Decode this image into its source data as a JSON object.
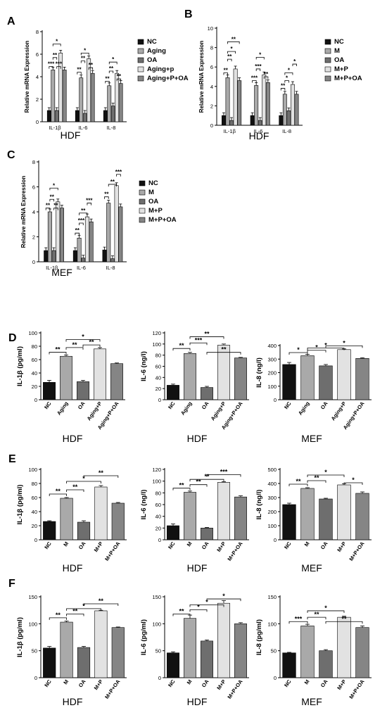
{
  "colors": {
    "NC": "#111111",
    "Aging": "#a9a9a9",
    "OA": "#6e6e6e",
    "Agingp": "#e2e2e2",
    "AgingpOA": "#858585"
  },
  "chart_data": [
    {
      "type": "bar",
      "panel": "A",
      "title": "HDF",
      "ylabel": "Relative mRNA Expression",
      "ylim": [
        0,
        8
      ],
      "yticks": [
        0,
        2,
        4,
        6,
        8
      ],
      "categories": [
        "IL-1β",
        "IL-6",
        "IL-8"
      ],
      "legend": [
        "NC",
        "Aging",
        "OA",
        "Aging+p",
        "Aging+P+OA"
      ],
      "series": [
        {
          "name": "NC",
          "values": [
            1,
            1,
            1
          ]
        },
        {
          "name": "Aging",
          "values": [
            4.6,
            3.9,
            3.2
          ]
        },
        {
          "name": "OA",
          "values": [
            1,
            0.75,
            1.4
          ]
        },
        {
          "name": "Aging+p",
          "values": [
            6.1,
            5.6,
            4.3
          ]
        },
        {
          "name": "Aging+P+OA",
          "values": [
            4.6,
            4.3,
            3.4
          ]
        }
      ],
      "annotations": [
        {
          "group": 0,
          "from": 0,
          "to": 1,
          "label": "***",
          "y": 4.9
        },
        {
          "group": 0,
          "from": 1,
          "to": 2,
          "label": "**",
          "y": 5.7
        },
        {
          "group": 0,
          "from": 1,
          "to": 3,
          "label": "*",
          "y": 6.9
        },
        {
          "group": 0,
          "from": 2,
          "to": 3,
          "label": "***",
          "y": 4.9
        },
        {
          "group": 1,
          "from": 0,
          "to": 1,
          "label": "**",
          "y": 4.4
        },
        {
          "group": 1,
          "from": 1,
          "to": 3,
          "label": "*",
          "y": 6.1
        },
        {
          "group": 1,
          "from": 1,
          "to": 2,
          "label": "**",
          "y": 5.4
        },
        {
          "group": 1,
          "from": 3,
          "to": 4,
          "label": "**",
          "y": 4.8
        },
        {
          "group": 2,
          "from": 0,
          "to": 1,
          "label": "**",
          "y": 3.6
        },
        {
          "group": 2,
          "from": 1,
          "to": 2,
          "label": "**",
          "y": 4.5
        },
        {
          "group": 2,
          "from": 1,
          "to": 3,
          "label": "*",
          "y": 5.3
        },
        {
          "group": 2,
          "from": 3,
          "to": 4,
          "label": "**",
          "y": 3.8
        }
      ]
    },
    {
      "type": "bar",
      "panel": "B",
      "title": "HDF",
      "ylabel": "Relative mRNA Expression",
      "ylim": [
        0,
        10
      ],
      "yticks": [
        0,
        2,
        4,
        6,
        8,
        10
      ],
      "categories": [
        "IL-1β",
        "IL-6",
        "IL-8"
      ],
      "legend": [
        "NC",
        "M",
        "OA",
        "M+P",
        "M+P+OA"
      ],
      "series": [
        {
          "name": "NC",
          "values": [
            1,
            1,
            1
          ]
        },
        {
          "name": "M",
          "values": [
            4.9,
            4.1,
            3.2
          ]
        },
        {
          "name": "OA",
          "values": [
            0.5,
            0.5,
            1.5
          ]
        },
        {
          "name": "M+P",
          "values": [
            5.8,
            5.2,
            4.2
          ]
        },
        {
          "name": "M+P+OA",
          "values": [
            4.6,
            4.4,
            3.2
          ]
        }
      ],
      "annotations": [
        {
          "group": 0,
          "from": 0,
          "to": 1,
          "label": "**",
          "y": 5.4
        },
        {
          "group": 0,
          "from": 1,
          "to": 2,
          "label": "**",
          "y": 6.8
        },
        {
          "group": 0,
          "from": 1,
          "to": 3,
          "label": "*",
          "y": 7.6
        },
        {
          "group": 0,
          "from": 1,
          "to": 4,
          "label": "**",
          "y": 8.6
        },
        {
          "group": 1,
          "from": 0,
          "to": 1,
          "label": "***",
          "y": 4.6
        },
        {
          "group": 1,
          "from": 1,
          "to": 2,
          "label": "***",
          "y": 5.8
        },
        {
          "group": 1,
          "from": 1,
          "to": 3,
          "label": "*",
          "y": 7.0
        },
        {
          "group": 1,
          "from": 3,
          "to": 4,
          "label": "**",
          "y": 5.0
        },
        {
          "group": 2,
          "from": 0,
          "to": 1,
          "label": "**",
          "y": 3.8
        },
        {
          "group": 2,
          "from": 1,
          "to": 2,
          "label": "*",
          "y": 4.6
        },
        {
          "group": 2,
          "from": 1,
          "to": 3,
          "label": "*",
          "y": 5.4
        },
        {
          "group": 2,
          "from": 3,
          "to": 4,
          "label": "*",
          "y": 6.3
        }
      ]
    },
    {
      "type": "bar",
      "panel": "C",
      "title": "MEF",
      "ylabel": "Relative mRNA Expression",
      "ylim": [
        0,
        8
      ],
      "yticks": [
        0,
        2,
        4,
        6,
        8
      ],
      "categories": [
        "IL-1β",
        "IL-6",
        "IL-8"
      ],
      "legend": [
        "NC",
        "M",
        "OA",
        "M+P",
        "M+P+OA"
      ],
      "series": [
        {
          "name": "NC",
          "values": [
            0.9,
            0.9,
            0.95
          ]
        },
        {
          "name": "M",
          "values": [
            4.0,
            1.9,
            4.7
          ]
        },
        {
          "name": "OA",
          "values": [
            0.9,
            0.3,
            0.25
          ]
        },
        {
          "name": "M+P",
          "values": [
            4.8,
            3.6,
            6.1
          ]
        },
        {
          "name": "M+P+OA",
          "values": [
            4.3,
            3.2,
            4.4
          ]
        }
      ],
      "annotations": [
        {
          "group": 0,
          "from": 0,
          "to": 1,
          "label": "**",
          "y": 4.3
        },
        {
          "group": 0,
          "from": 1,
          "to": 2,
          "label": "**",
          "y": 5.0
        },
        {
          "group": 0,
          "from": 1,
          "to": 3,
          "label": "*",
          "y": 5.9
        },
        {
          "group": 0,
          "from": 2,
          "to": 3,
          "label": "**",
          "y": 4.3
        },
        {
          "group": 1,
          "from": 0,
          "to": 1,
          "label": "**",
          "y": 2.3
        },
        {
          "group": 1,
          "from": 1,
          "to": 2,
          "label": "***",
          "y": 3.1
        },
        {
          "group": 1,
          "from": 1,
          "to": 3,
          "label": "**",
          "y": 3.9
        },
        {
          "group": 1,
          "from": 3,
          "to": 4,
          "label": "***",
          "y": 4.7
        },
        {
          "group": 2,
          "from": 0,
          "to": 1,
          "label": "**",
          "y": 5.2
        },
        {
          "group": 2,
          "from": 1,
          "to": 3,
          "label": "**",
          "y": 6.2
        },
        {
          "group": 2,
          "from": 3,
          "to": 4,
          "label": "***",
          "y": 7.0
        }
      ]
    },
    {
      "type": "bar",
      "panel": "D",
      "title": "HDF",
      "ylabel": "IL-1β  (pg/ml)",
      "ylim": [
        0,
        100
      ],
      "yticks": [
        0,
        20,
        40,
        60,
        80,
        100
      ],
      "categories": [
        "NC",
        "Aging",
        "OA",
        "Aging+P",
        "Aging+P+OA"
      ],
      "values": [
        26,
        65,
        27,
        76,
        54
      ],
      "errors": [
        3,
        2,
        2,
        2,
        1
      ],
      "annotations": [
        {
          "from": 0,
          "to": 1,
          "label": "**",
          "y": 71
        },
        {
          "from": 1,
          "to": 2,
          "label": "**",
          "y": 78
        },
        {
          "from": 2,
          "to": 3,
          "label": "**",
          "y": 82
        },
        {
          "from": 1,
          "to": 3,
          "label": "*",
          "y": 90
        }
      ]
    },
    {
      "type": "bar",
      "panel": "D",
      "title": "HDF",
      "ylabel": "IL-6  (ng/l)",
      "ylim": [
        0,
        120
      ],
      "yticks": [
        0,
        20,
        40,
        60,
        80,
        100,
        120
      ],
      "categories": [
        "NC",
        "Aging",
        "OA",
        "Aging+P",
        "Aging+P+OA"
      ],
      "values": [
        26,
        83,
        22,
        98,
        75
      ],
      "errors": [
        2,
        2,
        2,
        2,
        1
      ],
      "annotations": [
        {
          "from": 0,
          "to": 1,
          "label": "**",
          "y": 92
        },
        {
          "from": 1,
          "to": 2,
          "label": "***",
          "y": 102
        },
        {
          "from": 1,
          "to": 3,
          "label": "**",
          "y": 113
        },
        {
          "from": 2,
          "to": 4,
          "label": "**",
          "y": 85
        }
      ]
    },
    {
      "type": "bar",
      "panel": "D",
      "title": "MEF",
      "ylabel": "IL-8  (ng/l)",
      "ylim": [
        0,
        400
      ],
      "yticks": [
        0,
        100,
        200,
        300,
        400
      ],
      "categories": [
        "NC",
        "Aging",
        "OA",
        "Aging+P",
        "Aging+P+OA"
      ],
      "values": [
        260,
        325,
        250,
        370,
        305
      ],
      "errors": [
        15,
        10,
        10,
        5,
        5
      ],
      "annotations": [
        {
          "from": 0,
          "to": 1,
          "label": "*",
          "y": 348
        },
        {
          "from": 1,
          "to": 2,
          "label": "*",
          "y": 365
        },
        {
          "from": 1,
          "to": 3,
          "label": "*",
          "y": 382
        },
        {
          "from": 2,
          "to": 4,
          "label": "*",
          "y": 398
        }
      ]
    },
    {
      "type": "bar",
      "panel": "E",
      "title": "HDF",
      "ylabel": "IL-1β  (pg/ml)",
      "ylim": [
        0,
        100
      ],
      "yticks": [
        0,
        20,
        40,
        60,
        80,
        100
      ],
      "categories": [
        "NC",
        "M",
        "OA",
        "M+P",
        "M+P+OA"
      ],
      "values": [
        26,
        59,
        25,
        75,
        52
      ],
      "errors": [
        1,
        1,
        2,
        2,
        1
      ],
      "annotations": [
        {
          "from": 0,
          "to": 1,
          "label": "**",
          "y": 65
        },
        {
          "from": 1,
          "to": 2,
          "label": "**",
          "y": 71
        },
        {
          "from": 1,
          "to": 3,
          "label": "*",
          "y": 83
        },
        {
          "from": 2,
          "to": 4,
          "label": "**",
          "y": 91
        }
      ]
    },
    {
      "type": "bar",
      "panel": "E",
      "title": "HDF",
      "ylabel": "IL-6  (ng/l)",
      "ylim": [
        0,
        120
      ],
      "yticks": [
        0,
        20,
        40,
        60,
        80,
        100,
        120
      ],
      "categories": [
        "NC",
        "M",
        "OA",
        "M+P",
        "M+P+OA"
      ],
      "values": [
        24,
        81,
        20,
        98,
        73
      ],
      "errors": [
        3,
        2,
        1,
        1,
        2
      ],
      "annotations": [
        {
          "from": 0,
          "to": 1,
          "label": "**",
          "y": 88
        },
        {
          "from": 1,
          "to": 2,
          "label": "**",
          "y": 94
        },
        {
          "from": 1,
          "to": 3,
          "label": "**",
          "y": 103
        },
        {
          "from": 2,
          "to": 4,
          "label": "***",
          "y": 111
        }
      ]
    },
    {
      "type": "bar",
      "panel": "E",
      "title": "MEF",
      "ylabel": "IL-8  (ng/l)",
      "ylim": [
        0,
        500
      ],
      "yticks": [
        0,
        100,
        200,
        300,
        400,
        500
      ],
      "categories": [
        "NC",
        "M",
        "OA",
        "M+P",
        "M+P+OA"
      ],
      "values": [
        250,
        365,
        290,
        390,
        330
      ],
      "errors": [
        10,
        5,
        5,
        8,
        10
      ],
      "annotations": [
        {
          "from": 0,
          "to": 1,
          "label": "**",
          "y": 395
        },
        {
          "from": 1,
          "to": 2,
          "label": "**",
          "y": 420
        },
        {
          "from": 1,
          "to": 3,
          "label": "*",
          "y": 460
        },
        {
          "from": 3,
          "to": 4,
          "label": "*",
          "y": 405
        }
      ]
    },
    {
      "type": "bar",
      "panel": "F",
      "title": "HDF",
      "ylabel": "IL-1β  (pg/ml)",
      "ylim": [
        0,
        150
      ],
      "yticks": [
        0,
        50,
        100,
        150
      ],
      "categories": [
        "NC",
        "M",
        "OA",
        "M+P",
        "M+P+OA"
      ],
      "values": [
        55,
        103,
        56,
        124,
        93
      ],
      "errors": [
        3,
        2,
        2,
        1,
        1
      ],
      "annotations": [
        {
          "from": 0,
          "to": 1,
          "label": "**",
          "y": 111
        },
        {
          "from": 1,
          "to": 2,
          "label": "**",
          "y": 118
        },
        {
          "from": 1,
          "to": 3,
          "label": "*",
          "y": 128
        },
        {
          "from": 2,
          "to": 4,
          "label": "**",
          "y": 137
        }
      ]
    },
    {
      "type": "bar",
      "panel": "F",
      "title": "HDF",
      "ylabel": "IL-6  (pg/ml)",
      "ylim": [
        0,
        150
      ],
      "yticks": [
        0,
        50,
        100,
        150
      ],
      "categories": [
        "NC",
        "M",
        "OA",
        "M+P",
        "M+P+OA"
      ],
      "values": [
        46,
        110,
        68,
        138,
        100
      ],
      "errors": [
        2,
        6,
        2,
        5,
        2
      ],
      "annotations": [
        {
          "from": 0,
          "to": 1,
          "label": "**",
          "y": 118
        },
        {
          "from": 1,
          "to": 2,
          "label": "*",
          "y": 126
        },
        {
          "from": 1,
          "to": 3,
          "label": "*",
          "y": 135
        },
        {
          "from": 2,
          "to": 4,
          "label": "*",
          "y": 146
        }
      ]
    },
    {
      "type": "bar",
      "panel": "F",
      "title": "MEF",
      "ylabel": "IL-8  (pg/ml)",
      "ylim": [
        0,
        150
      ],
      "yticks": [
        0,
        50,
        100,
        150
      ],
      "categories": [
        "NC",
        "M",
        "OA",
        "M+P",
        "M+P+OA"
      ],
      "values": [
        46,
        96,
        50,
        112,
        93
      ],
      "errors": [
        1,
        3,
        2,
        2,
        3
      ],
      "annotations": [
        {
          "from": 0,
          "to": 1,
          "label": "***",
          "y": 104
        },
        {
          "from": 1,
          "to": 2,
          "label": "**",
          "y": 112
        },
        {
          "from": 1,
          "to": 3,
          "label": "*",
          "y": 124
        },
        {
          "from": 2,
          "to": 4,
          "label": "**",
          "y": 104
        }
      ]
    }
  ]
}
